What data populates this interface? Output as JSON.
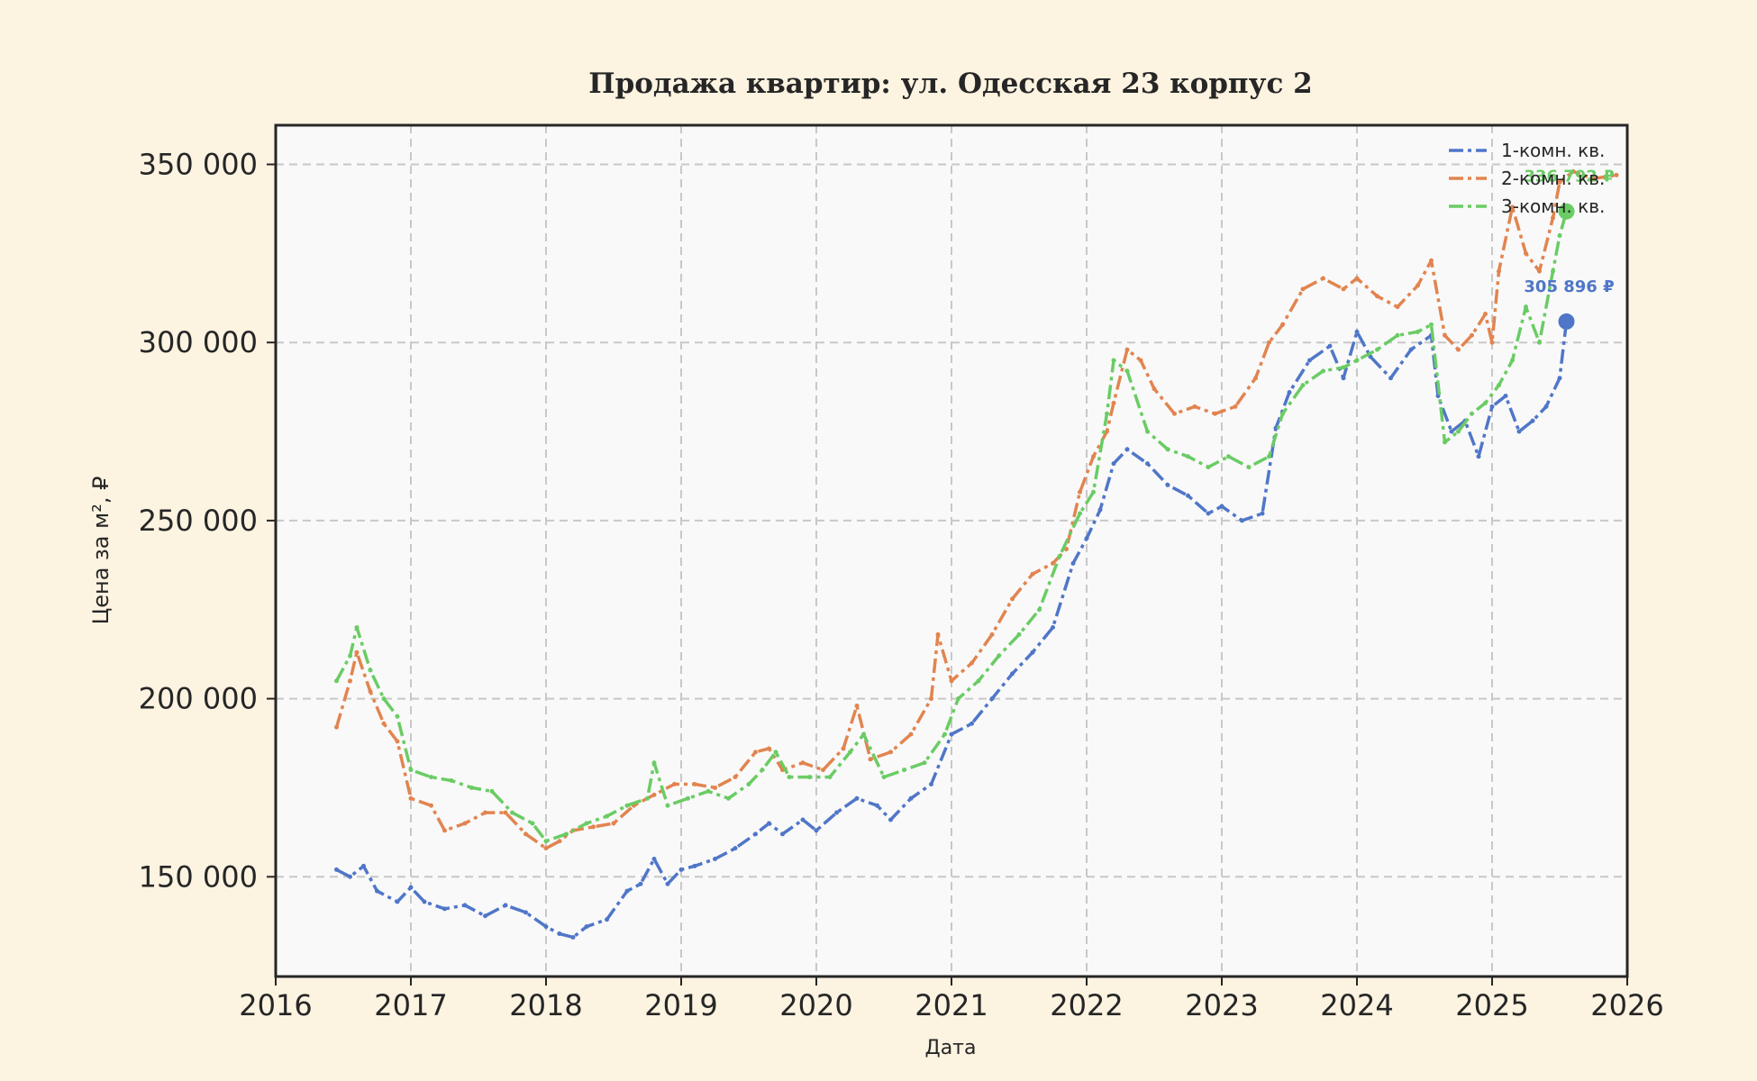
{
  "chart_data": {
    "type": "line",
    "title": "Продажа квартир: ул. Одесская 23 корпус 2",
    "xlabel": "Дата",
    "ylabel": "Цена за м², ₽",
    "xlim": [
      2016.0,
      2026.0
    ],
    "ylim": [
      122000,
      361000
    ],
    "x_ticks": [
      2016,
      2017,
      2018,
      2019,
      2020,
      2021,
      2022,
      2023,
      2024,
      2025,
      2026
    ],
    "x_tick_labels": [
      "2016",
      "2017",
      "2018",
      "2019",
      "2020",
      "2021",
      "2022",
      "2023",
      "2024",
      "2025",
      "2026"
    ],
    "y_ticks": [
      150000,
      200000,
      250000,
      300000,
      350000
    ],
    "y_tick_labels": [
      "150 000",
      "200 000",
      "250 000",
      "300 000",
      "350 000"
    ],
    "grid": true,
    "legend_position": "top-right",
    "background": "#fcf3e1",
    "plot_background": "#f9f9f9",
    "series": [
      {
        "name": "1-комн. кв.",
        "color": "#4f76c8",
        "x": [
          2016.45,
          2016.55,
          2016.65,
          2016.75,
          2016.9,
          2017.0,
          2017.1,
          2017.25,
          2017.4,
          2017.55,
          2017.7,
          2017.85,
          2018.0,
          2018.1,
          2018.2,
          2018.3,
          2018.45,
          2018.6,
          2018.7,
          2018.8,
          2018.9,
          2019.0,
          2019.1,
          2019.25,
          2019.4,
          2019.55,
          2019.65,
          2019.75,
          2019.9,
          2020.0,
          2020.15,
          2020.3,
          2020.45,
          2020.55,
          2020.7,
          2020.85,
          2021.0,
          2021.15,
          2021.3,
          2021.45,
          2021.6,
          2021.75,
          2021.9,
          2022.0,
          2022.1,
          2022.2,
          2022.3,
          2022.45,
          2022.6,
          2022.75,
          2022.9,
          2023.0,
          2023.15,
          2023.3,
          2023.4,
          2023.5,
          2023.65,
          2023.8,
          2023.9,
          2024.0,
          2024.1,
          2024.25,
          2024.4,
          2024.55,
          2024.6,
          2024.7,
          2024.8,
          2024.9,
          2025.0,
          2025.1,
          2025.2,
          2025.3,
          2025.4,
          2025.5,
          2025.55
        ],
        "values": [
          152000,
          150000,
          153000,
          146000,
          143000,
          147000,
          143000,
          141000,
          142000,
          139000,
          142000,
          140000,
          136000,
          134000,
          133000,
          136000,
          138000,
          146000,
          148000,
          155000,
          148000,
          152000,
          153000,
          155000,
          158000,
          162000,
          165000,
          162000,
          166000,
          163000,
          168000,
          172000,
          170000,
          166000,
          172000,
          176000,
          190000,
          193000,
          200000,
          207000,
          213000,
          220000,
          238000,
          245000,
          253000,
          266000,
          270000,
          266000,
          260000,
          257000,
          252000,
          254000,
          250000,
          252000,
          276000,
          286000,
          295000,
          299000,
          290000,
          303000,
          296000,
          290000,
          298000,
          302000,
          285000,
          275000,
          278000,
          268000,
          282000,
          285000,
          275000,
          278000,
          282000,
          290000,
          305896
        ]
      },
      {
        "name": "2-комн. кв.",
        "color": "#e2844f",
        "x": [
          2016.45,
          2016.55,
          2016.6,
          2016.7,
          2016.8,
          2016.9,
          2017.0,
          2017.15,
          2017.25,
          2017.4,
          2017.55,
          2017.7,
          2017.85,
          2018.0,
          2018.1,
          2018.2,
          2018.35,
          2018.5,
          2018.65,
          2018.8,
          2018.95,
          2019.1,
          2019.25,
          2019.4,
          2019.55,
          2019.65,
          2019.75,
          2019.9,
          2020.05,
          2020.2,
          2020.3,
          2020.4,
          2020.55,
          2020.7,
          2020.85,
          2020.9,
          2021.0,
          2021.15,
          2021.3,
          2021.45,
          2021.6,
          2021.75,
          2021.85,
          2021.95,
          2022.05,
          2022.15,
          2022.2,
          2022.3,
          2022.4,
          2022.5,
          2022.65,
          2022.8,
          2022.95,
          2023.1,
          2023.25,
          2023.35,
          2023.45,
          2023.6,
          2023.75,
          2023.9,
          2024.0,
          2024.15,
          2024.3,
          2024.45,
          2024.55,
          2024.65,
          2024.75,
          2024.85,
          2024.95,
          2025.0,
          2025.05,
          2025.15,
          2025.25,
          2025.35,
          2025.45,
          2025.5,
          2025.6,
          2025.75,
          2025.92
        ],
        "values": [
          192000,
          205000,
          213000,
          202000,
          193000,
          188000,
          172000,
          170000,
          163000,
          165000,
          168000,
          168000,
          162000,
          158000,
          160000,
          163000,
          164000,
          165000,
          170000,
          173000,
          176000,
          176000,
          175000,
          178000,
          185000,
          186000,
          180000,
          182000,
          180000,
          186000,
          198000,
          183000,
          185000,
          190000,
          200000,
          218000,
          205000,
          210000,
          218000,
          228000,
          235000,
          238000,
          242000,
          258000,
          268000,
          275000,
          283000,
          298000,
          295000,
          287000,
          280000,
          282000,
          280000,
          282000,
          290000,
          300000,
          305000,
          315000,
          318000,
          315000,
          318000,
          313000,
          310000,
          316000,
          323000,
          302000,
          298000,
          302000,
          308000,
          300000,
          320000,
          338000,
          325000,
          320000,
          335000,
          345000,
          348000,
          346000,
          347000
        ]
      },
      {
        "name": "3-комн. кв.",
        "color": "#6acc64",
        "x": [
          2016.45,
          2016.55,
          2016.6,
          2016.7,
          2016.8,
          2016.9,
          2017.0,
          2017.15,
          2017.3,
          2017.45,
          2017.6,
          2017.75,
          2017.9,
          2018.0,
          2018.15,
          2018.3,
          2018.45,
          2018.6,
          2018.75,
          2018.8,
          2018.9,
          2019.05,
          2019.2,
          2019.35,
          2019.5,
          2019.6,
          2019.7,
          2019.8,
          2019.95,
          2020.1,
          2020.25,
          2020.35,
          2020.5,
          2020.65,
          2020.8,
          2020.95,
          2021.05,
          2021.2,
          2021.35,
          2021.5,
          2021.65,
          2021.8,
          2021.95,
          2022.05,
          2022.15,
          2022.2,
          2022.3,
          2022.45,
          2022.6,
          2022.75,
          2022.9,
          2023.05,
          2023.2,
          2023.35,
          2023.45,
          2023.6,
          2023.75,
          2023.9,
          2024.0,
          2024.15,
          2024.3,
          2024.45,
          2024.55,
          2024.65,
          2024.75,
          2024.85,
          2024.95,
          2025.05,
          2025.15,
          2025.25,
          2025.35,
          2025.45,
          2025.5,
          2025.55
        ],
        "values": [
          205000,
          212000,
          220000,
          208000,
          200000,
          195000,
          180000,
          178000,
          177000,
          175000,
          174000,
          168000,
          165000,
          160000,
          162000,
          165000,
          167000,
          170000,
          172000,
          182000,
          170000,
          172000,
          174000,
          172000,
          176000,
          180000,
          185000,
          178000,
          178000,
          178000,
          185000,
          190000,
          178000,
          180000,
          182000,
          190000,
          200000,
          205000,
          212000,
          218000,
          225000,
          240000,
          252000,
          258000,
          280000,
          295000,
          292000,
          275000,
          270000,
          268000,
          265000,
          268000,
          265000,
          268000,
          280000,
          288000,
          292000,
          293000,
          295000,
          298000,
          302000,
          303000,
          305000,
          272000,
          275000,
          280000,
          283000,
          288000,
          295000,
          310000,
          300000,
          320000,
          330000,
          336792
        ]
      }
    ],
    "annotations": [
      {
        "series": "1-комн. кв.",
        "x": 2025.55,
        "y": 305896,
        "text": "305 896 ₽"
      },
      {
        "series": "3-комн. кв.",
        "x": 2025.55,
        "y": 336792,
        "text": "336 792 ₽"
      }
    ]
  }
}
